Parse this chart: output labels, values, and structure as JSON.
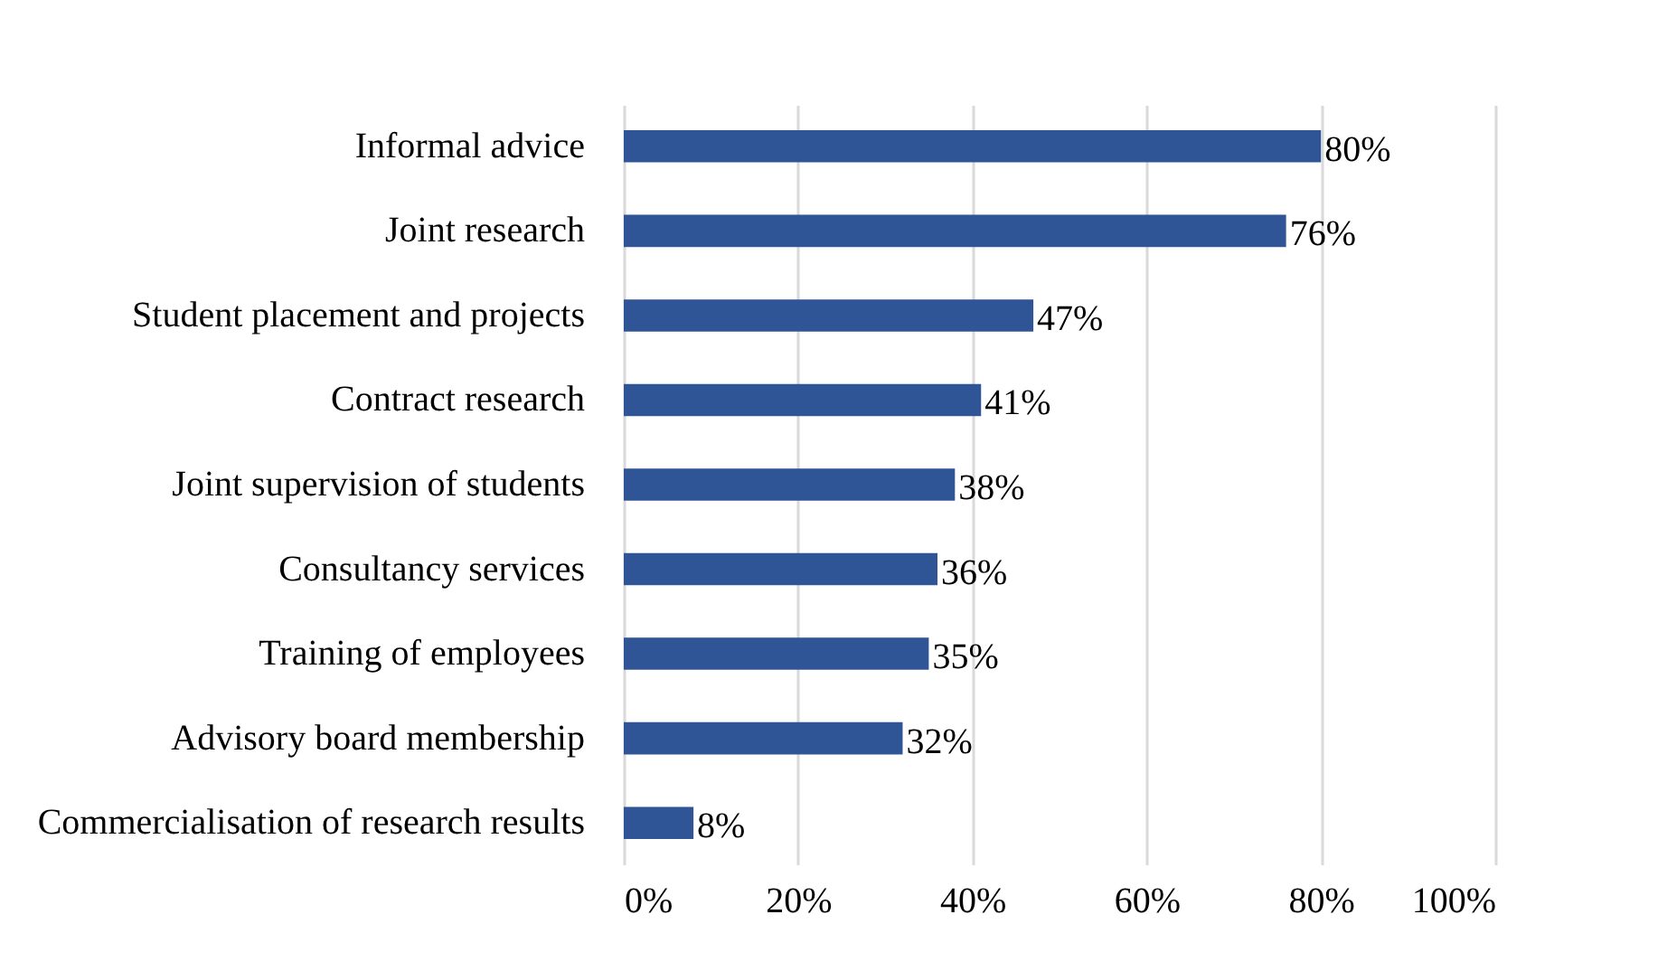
{
  "chart_data": {
    "type": "bar",
    "orientation": "horizontal",
    "categories": [
      "Informal advice",
      "Joint research",
      "Student placement and projects",
      "Contract research",
      "Joint supervision of students",
      "Consultancy services",
      "Training of employees",
      "Advisory board membership",
      "Commercialisation of research results"
    ],
    "values": [
      80,
      76,
      47,
      41,
      38,
      36,
      35,
      32,
      8
    ],
    "value_labels": [
      "80%",
      "76%",
      "47%",
      "41%",
      "38%",
      "36%",
      "35%",
      "32%",
      "8%"
    ],
    "color": "#2f5597",
    "xlim": [
      0,
      100
    ],
    "xticks": [
      {
        "value": 0,
        "label": "0%"
      },
      {
        "value": 20,
        "label": "20%"
      },
      {
        "value": 40,
        "label": "40%"
      },
      {
        "value": 60,
        "label": "60%"
      },
      {
        "value": 80,
        "label": "80%"
      },
      {
        "value": 100,
        "label": "100%"
      }
    ],
    "grid": "x"
  }
}
